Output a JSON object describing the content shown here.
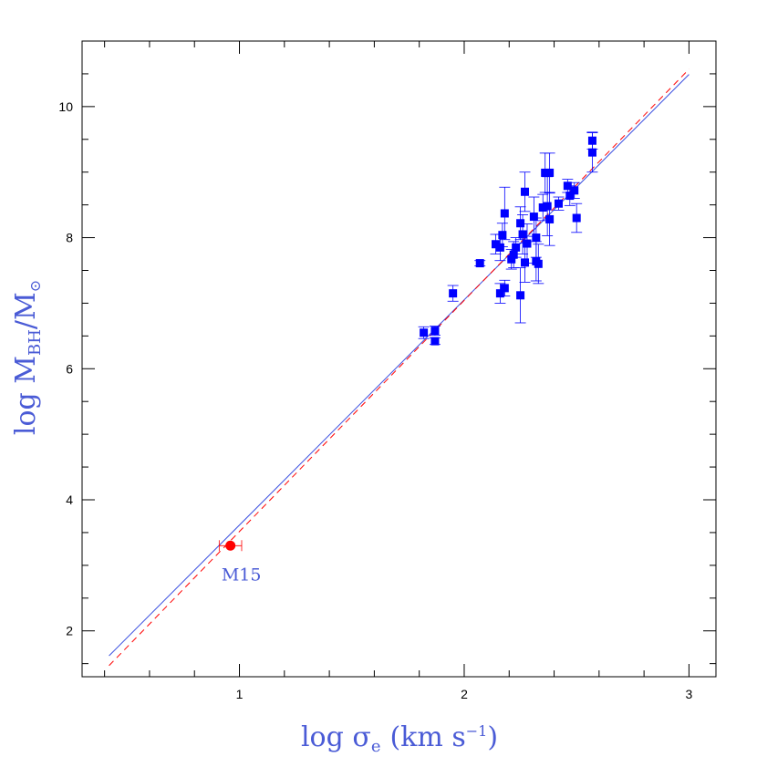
{
  "chart_data": {
    "type": "scatter",
    "title": "",
    "xlabel": "log σ",
    "xlabel_sub": "e",
    "xlabel_unit": "(km s",
    "xlabel_unit_sup": "−1",
    "xlabel_unit_close": ")",
    "ylabel": "log M",
    "ylabel_sub": "BH",
    "ylabel_slash": "/M",
    "ylabel_sub2": "⊙",
    "xlim": [
      0.3,
      3.12
    ],
    "ylim": [
      1.3,
      11.0
    ],
    "xticks": [
      1,
      2,
      3
    ],
    "yticks": [
      2,
      4,
      6,
      8,
      10
    ],
    "grid": false,
    "colors": {
      "galaxies": "#0000ff",
      "m15": "#ff0000",
      "fit_solid": "#3a4fe0",
      "fit_dashed": "#ff0000",
      "label": "#4a5bd6"
    },
    "series": [
      {
        "marker": "square",
        "color": "#0000ff",
        "points": [
          {
            "x": 1.82,
            "y": 6.55,
            "err": 0.09
          },
          {
            "x": 1.87,
            "y": 6.58,
            "err": 0.07
          },
          {
            "x": 1.87,
            "y": 6.42,
            "err": 0.05
          },
          {
            "x": 1.95,
            "y": 7.15,
            "err": 0.12
          },
          {
            "x": 2.07,
            "y": 7.61,
            "err": 0.04
          },
          {
            "x": 2.14,
            "y": 7.9,
            "err": 0.15
          },
          {
            "x": 2.16,
            "y": 7.85,
            "err": 0.2
          },
          {
            "x": 2.17,
            "y": 8.04,
            "err": 0.18
          },
          {
            "x": 2.18,
            "y": 8.37,
            "err": 0.4
          },
          {
            "x": 2.16,
            "y": 7.15,
            "err": 0.15
          },
          {
            "x": 2.18,
            "y": 7.23,
            "err": 0.12
          },
          {
            "x": 2.21,
            "y": 7.67,
            "err": 0.15
          },
          {
            "x": 2.22,
            "y": 7.74,
            "err": 0.2
          },
          {
            "x": 2.23,
            "y": 7.85,
            "err": 0.15
          },
          {
            "x": 2.25,
            "y": 8.22,
            "err": 0.25
          },
          {
            "x": 2.26,
            "y": 8.05,
            "err": 0.3
          },
          {
            "x": 2.27,
            "y": 8.7,
            "err": 0.3
          },
          {
            "x": 2.28,
            "y": 7.91,
            "err": 0.3
          },
          {
            "x": 2.25,
            "y": 7.12,
            "err": 0.42
          },
          {
            "x": 2.27,
            "y": 7.62,
            "err": 0.3
          },
          {
            "x": 2.31,
            "y": 8.32,
            "err": 0.3
          },
          {
            "x": 2.32,
            "y": 8.0,
            "err": 0.3
          },
          {
            "x": 2.32,
            "y": 7.64,
            "err": 0.3
          },
          {
            "x": 2.33,
            "y": 7.6,
            "err": 0.3
          },
          {
            "x": 2.35,
            "y": 8.46,
            "err": 0.2
          },
          {
            "x": 2.36,
            "y": 8.99,
            "err": 0.3
          },
          {
            "x": 2.38,
            "y": 8.99,
            "err": 0.3
          },
          {
            "x": 2.37,
            "y": 8.48,
            "err": 0.45
          },
          {
            "x": 2.38,
            "y": 8.28,
            "err": 0.4
          },
          {
            "x": 2.42,
            "y": 8.52,
            "err": 0.1
          },
          {
            "x": 2.46,
            "y": 8.79,
            "err": 0.1
          },
          {
            "x": 2.47,
            "y": 8.64,
            "err": 0.15
          },
          {
            "x": 2.49,
            "y": 8.72,
            "err": 0.12
          },
          {
            "x": 2.5,
            "y": 8.3,
            "err": 0.22
          },
          {
            "x": 2.57,
            "y": 9.48,
            "err": 0.13
          },
          {
            "x": 2.57,
            "y": 9.3,
            "err": 0.3
          }
        ]
      },
      {
        "marker": "circle",
        "color": "#ff0000",
        "label": "M15",
        "points": [
          {
            "x": 0.96,
            "y": 3.3,
            "xerr": 0.05
          }
        ]
      }
    ],
    "fit_lines": [
      {
        "style": "solid",
        "color": "#3a4fe0",
        "x": [
          0.42,
          3.0
        ],
        "y": [
          1.62,
          10.49
        ]
      },
      {
        "style": "dashed",
        "color": "#ff0000",
        "x": [
          0.42,
          3.0
        ],
        "y": [
          1.47,
          10.57
        ]
      }
    ]
  }
}
